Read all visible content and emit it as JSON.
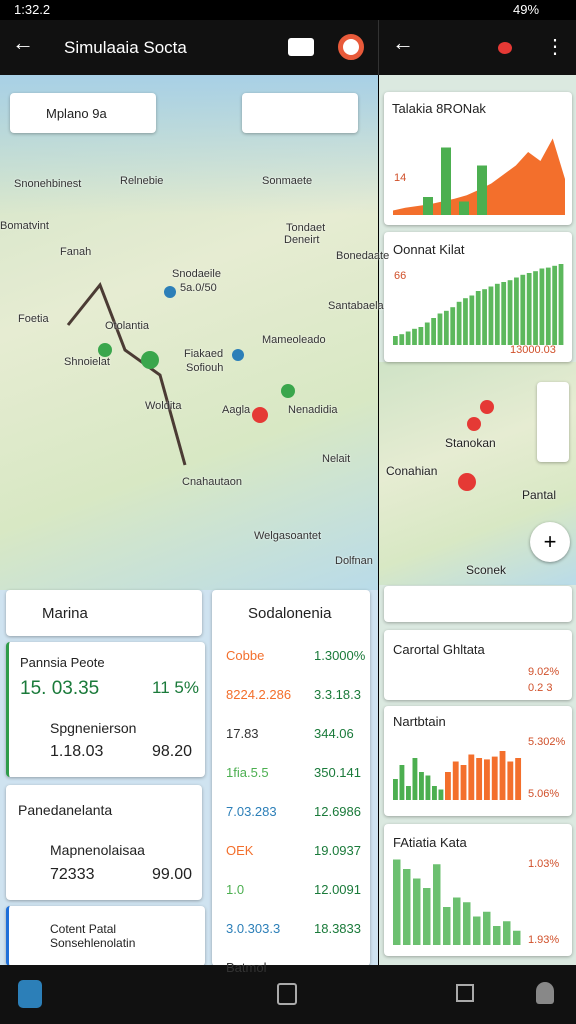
{
  "status_bar": {
    "time": "1:32.2",
    "battery": "49%"
  },
  "app_bar": {
    "title": "Simulaaia Socta"
  },
  "map": {
    "search": "Mplano 9a",
    "labels": [
      "Snonehbinest",
      "Relnebie",
      "Sonmaete",
      "Bomatvint",
      "Fanah",
      "Tondaet",
      "Deneirt",
      "Snodaeile",
      "Bonedaate",
      "Foetia",
      "5a.0/50",
      "Santabaela",
      "Otolantia",
      "Mameoleado",
      "Shnoielat",
      "Fiakaed",
      "Sofiouh",
      "Woldita",
      "Aagla",
      "Nenadidia",
      "Nelait",
      "Cnahautaon",
      "Welgasoantet",
      "Dolfnan"
    ]
  },
  "left_panel": {
    "title": "Marina",
    "card1": {
      "label": "Pannsia Peote",
      "value": "15. 03.35",
      "side": "11 5%",
      "label2": "Spgnenierson",
      "value2": "1.18.03",
      "side2": "98.20"
    },
    "card2": {
      "label": "Panedanelanta",
      "label2": "Mapnenolaisaa",
      "value2": "72333",
      "side2": "99.00"
    },
    "card3": {
      "label": "Cotent Patal",
      "label2": "Sonsehlenolatin"
    }
  },
  "table_panel": {
    "title": "Sodalonenia",
    "rows": [
      [
        "Cobbe",
        "1.3000%"
      ],
      [
        "8224.2.286",
        "3.3.18.3"
      ],
      [
        "17.83",
        "344.06"
      ],
      [
        "1fia.5.5",
        "350.141"
      ],
      [
        "7.03.283",
        "12.6986"
      ],
      [
        "OEK",
        "19.0937"
      ],
      [
        "1.0",
        "12.0091"
      ],
      [
        "3.0.303.3",
        "18.3833"
      ],
      [
        "Batmol",
        ""
      ]
    ]
  },
  "right_panel": {
    "map_labels": [
      "Stanokan",
      "Conahian",
      "Pantal",
      "Sconek"
    ],
    "cards": [
      {
        "title": "Talakia 8RONak",
        "note": "14"
      },
      {
        "title": "Oonnat Kilat",
        "note": "66",
        "axis": "13000.03"
      },
      {
        "title": "Carortal Ghltata",
        "value": "9.02%",
        "value2": "0.2 3"
      },
      {
        "title": "Nartbtain",
        "value": "5.302%",
        "value2": "5.06%"
      },
      {
        "title": "FAtiatia Kata",
        "value": "1.03%",
        "value2": "1.93%"
      }
    ]
  },
  "mini_charts": [
    {
      "ylim": [
        0,
        100
      ],
      "series": [
        {
          "color": "#f36f2c",
          "kind": "area",
          "values": [
            5,
            8,
            10,
            12,
            15,
            18,
            22,
            28,
            35,
            45,
            55,
            70,
            60,
            85,
            40
          ]
        },
        {
          "color": "#4caf50",
          "kind": "bar",
          "values": [
            20,
            75,
            15,
            55
          ]
        }
      ]
    },
    {
      "ylim": [
        0,
        100
      ],
      "series": [
        {
          "color": "#5cb85c",
          "kind": "bar",
          "values": [
            10,
            12,
            15,
            18,
            20,
            25,
            30,
            35,
            38,
            42,
            48,
            52,
            55,
            60,
            62,
            65,
            68,
            70,
            72,
            75,
            78,
            80,
            82,
            85,
            86,
            88,
            90
          ]
        }
      ]
    },
    {
      "ylim": [
        0,
        100
      ],
      "series": [
        {
          "color": "#4caf50",
          "kind": "bar",
          "values": [
            30,
            50,
            20,
            60,
            40,
            35,
            20,
            15
          ]
        },
        {
          "color": "#f36f2c",
          "kind": "bar",
          "values": [
            40,
            55,
            50,
            65,
            60,
            58,
            62,
            70,
            55,
            60
          ]
        }
      ]
    },
    {
      "ylim": [
        0,
        100
      ],
      "series": [
        {
          "color": "#6cc070",
          "kind": "bar",
          "values": [
            90,
            80,
            70,
            60,
            85,
            40,
            50,
            45,
            30,
            35,
            20,
            25,
            15
          ]
        }
      ]
    }
  ]
}
